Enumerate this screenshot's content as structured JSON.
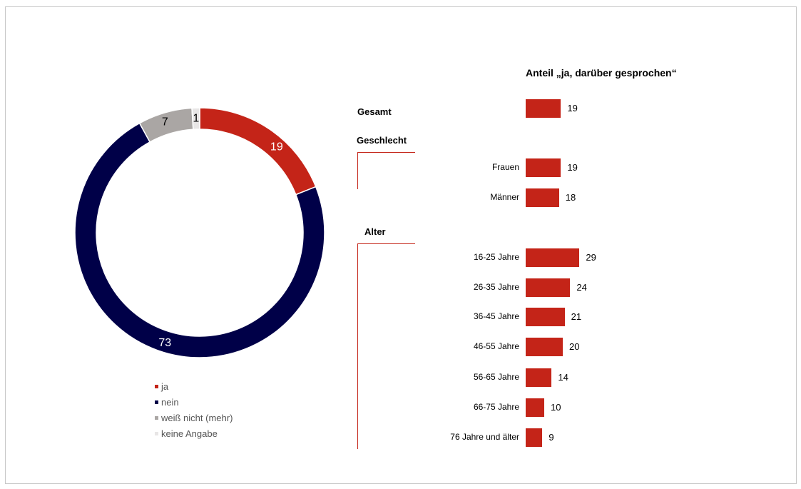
{
  "chart_data": [
    {
      "type": "pie",
      "donut": true,
      "title": "",
      "slices": [
        {
          "label": "ja",
          "value": 19,
          "color": "#c42418"
        },
        {
          "label": "nein",
          "value": 73,
          "color": "#000048"
        },
        {
          "label": "weiß nicht (mehr)",
          "value": 7,
          "color": "#aaa6a4"
        },
        {
          "label": "keine Angabe",
          "value": 1,
          "color": "#e8e6e6"
        }
      ],
      "data_labels": [
        "19",
        "73",
        "7",
        "1"
      ],
      "legend": "bottom",
      "legend_entries": [
        "ja",
        "nein",
        "weiß nicht (mehr)",
        "keine Angabe"
      ]
    },
    {
      "type": "bar",
      "orientation": "horizontal",
      "title": "Anteil „ja, darüber gesprochen“",
      "color": "#c42418",
      "groups": [
        {
          "label": "Gesamt",
          "categories": [
            ""
          ],
          "values": [
            19
          ]
        },
        {
          "label": "Geschlecht",
          "categories": [
            "Frauen",
            "Männer"
          ],
          "values": [
            19,
            18
          ]
        },
        {
          "label": "Alter",
          "categories": [
            "16-25 Jahre",
            "26-35 Jahre",
            "36-45 Jahre",
            "46-55 Jahre",
            "56-65 Jahre",
            "66-75 Jahre",
            "76 Jahre und älter"
          ],
          "values": [
            29,
            24,
            21,
            20,
            14,
            10,
            9
          ]
        }
      ],
      "grid": false
    }
  ]
}
